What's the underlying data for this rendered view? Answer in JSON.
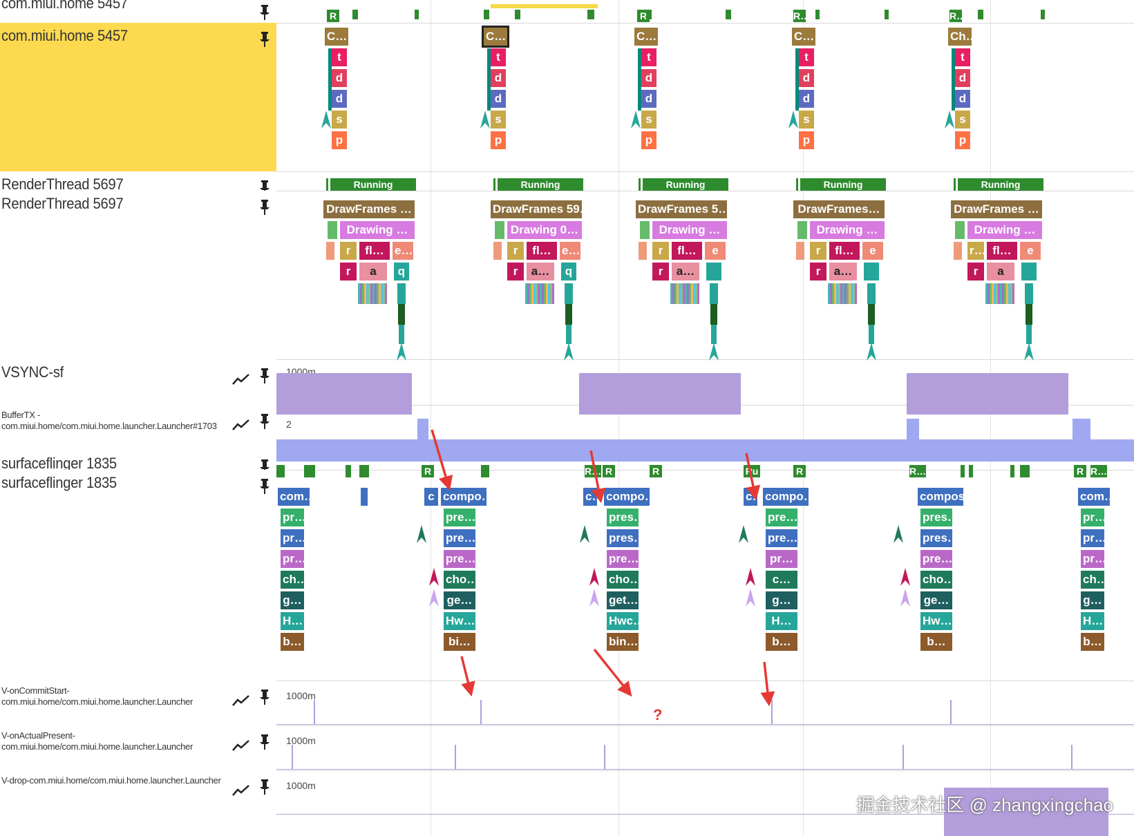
{
  "tracks": [
    {
      "id": "header",
      "label": "com.miui.home 5457",
      "has_trend": false
    },
    {
      "id": "main",
      "label": "com.miui.home 5457",
      "has_trend": false,
      "selected": true
    },
    {
      "id": "rt-state",
      "label": "RenderThread 5697",
      "has_trend": false
    },
    {
      "id": "rt",
      "label": "RenderThread 5697",
      "has_trend": false
    },
    {
      "id": "vsync",
      "label": "VSYNC-sf",
      "has_trend": true
    },
    {
      "id": "buffertx",
      "label": "BufferTX - com.miui.home/com.miui.home.launcher.Launcher#1703",
      "has_trend": true
    },
    {
      "id": "sf-state",
      "label": "surfaceflinger 1835",
      "has_trend": false
    },
    {
      "id": "sf",
      "label": "surfaceflinger 1835",
      "has_trend": false
    },
    {
      "id": "commit",
      "label": "V-onCommitStart-com.miui.home/com.miui.home.launcher.Launcher",
      "has_trend": true
    },
    {
      "id": "present",
      "label": "V-onActualPresent-com.miui.home/com.miui.home.launcher.Launcher",
      "has_trend": true
    },
    {
      "id": "drop",
      "label": "V-drop-com.miui.home/com.miui.home.launcher.Launcher",
      "has_trend": true
    }
  ],
  "counters": {
    "vsync": "1000m",
    "buffertx": "2",
    "commit": "1000m",
    "present": "1000m",
    "drop": "1000m"
  },
  "header_states": [
    "R",
    "R",
    "R…",
    "R…"
  ],
  "main_slices": {
    "top": [
      "C…",
      "C…",
      "C…",
      "C…",
      "Ch…"
    ],
    "stack": [
      "t",
      "d",
      "d",
      "s",
      "p"
    ]
  },
  "rt_state_label": "Running",
  "rt_slices": {
    "l1": [
      "DrawFrames …",
      "DrawFrames 59…",
      "DrawFrames 5…",
      "DrawFrames…",
      "DrawFrames …"
    ],
    "l2": [
      "Drawing …",
      "Drawing 0…",
      "Drawing …",
      "Drawing …",
      "Drawing …"
    ],
    "l3": [
      [
        "r",
        "fl…",
        "e…"
      ],
      [
        "r",
        "fl…",
        "e…"
      ],
      [
        "r",
        "fl…",
        "e"
      ],
      [
        "r",
        "fl…",
        "e"
      ],
      [
        "r…",
        "fl…",
        "e"
      ]
    ],
    "l4": [
      [
        "r",
        "a",
        "q"
      ],
      [
        "r",
        "a…",
        "q"
      ],
      [
        "r",
        "a…",
        ""
      ],
      [
        "r",
        "a…",
        ""
      ],
      [
        "r",
        "a",
        ""
      ]
    ]
  },
  "sf_states": [
    "R",
    "R…",
    "R",
    "R",
    "Ru",
    "R",
    "R…",
    "R",
    "R…"
  ],
  "sf_columns": [
    [
      "com…",
      "pr…",
      "pr…",
      "pr…",
      "ch…",
      "g…",
      "H…",
      "b…"
    ],
    [
      "compo…",
      "pre…",
      "pre…",
      "pre…",
      "cho…",
      "ge…",
      "Hw…",
      "bi…"
    ],
    [
      "compo…",
      "pres…",
      "pres…",
      "pre…",
      "cho…",
      "get…",
      "Hwc…",
      "bin…"
    ],
    [
      "compo…",
      "pre…",
      "pre…",
      "pr…",
      "c…",
      "g…",
      "H…",
      "b…"
    ],
    [
      "compos…",
      "pres…",
      "pres…",
      "pre…",
      "cho…",
      "ge…",
      "Hw…",
      "b…"
    ],
    [
      "com…",
      "pr…",
      "pr…",
      "pr…",
      "ch…",
      "g…",
      "H…",
      "b…"
    ]
  ],
  "sf_small": [
    "c",
    "c…",
    "c…"
  ],
  "annotation_question": "?",
  "watermark": "掘金技术社区 @ zhangxingchao",
  "colors": {
    "selected_track": "#fdd94f",
    "running": "#2e8b2e",
    "counter_fill": "#b39ddb",
    "buffer_fill": "#9fa8f0",
    "arrow": "#e53935"
  }
}
